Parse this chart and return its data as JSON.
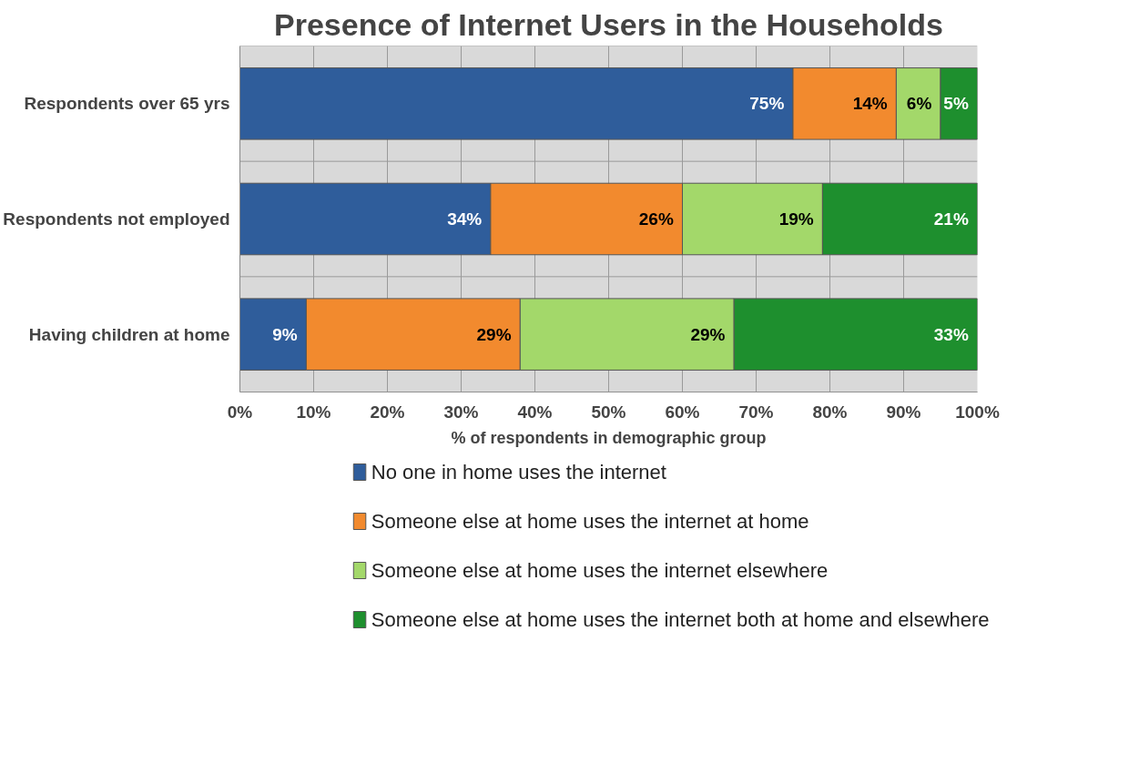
{
  "chart_data": {
    "type": "bar",
    "orientation": "horizontal",
    "stacked": true,
    "title": "Presence of Internet Users in the Households",
    "xlabel": "% of respondents in demographic group",
    "categories": [
      "Respondents over 65 yrs",
      "Respondents not employed",
      "Having children at home"
    ],
    "series": [
      {
        "name": "No one in home uses the internet",
        "color": "#2f5d9b",
        "values": [
          75,
          34,
          9
        ],
        "value_labels": [
          "75%",
          "34%",
          "9%"
        ]
      },
      {
        "name": "Someone else at home uses the internet at home",
        "color": "#f28a2e",
        "values": [
          14,
          26,
          29
        ],
        "value_labels": [
          "14%",
          "26%",
          "29%"
        ]
      },
      {
        "name": "Someone else  at home uses the internet elsewhere",
        "color": "#a3d86a",
        "values": [
          6,
          19,
          29
        ],
        "value_labels": [
          "6%",
          "19%",
          "29%"
        ]
      },
      {
        "name": "Someone else at home uses the internet both at home and elsewhere",
        "color": "#1e8f2e",
        "values": [
          5,
          21,
          33
        ],
        "value_labels": [
          "5%",
          "21%",
          "33%"
        ]
      }
    ],
    "xlim": [
      0,
      100
    ],
    "xticks": [
      {
        "value": 0,
        "label": "0%"
      },
      {
        "value": 10,
        "label": "10%"
      },
      {
        "value": 20,
        "label": "20%"
      },
      {
        "value": 30,
        "label": "30%"
      },
      {
        "value": 40,
        "label": "40%"
      },
      {
        "value": 50,
        "label": "50%"
      },
      {
        "value": 60,
        "label": "60%"
      },
      {
        "value": 70,
        "label": "70%"
      },
      {
        "value": 80,
        "label": "80%"
      },
      {
        "value": 90,
        "label": "90%"
      },
      {
        "value": 100,
        "label": "100%"
      }
    ],
    "grid": true,
    "legend": "bottom"
  }
}
